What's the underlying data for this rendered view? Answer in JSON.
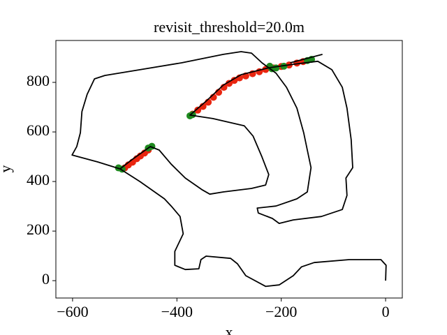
{
  "chart_data": {
    "type": "line",
    "title": "revisit_threshold=20.0m",
    "xlabel": "x",
    "ylabel": "y",
    "xlim": [
      -632,
      32
    ],
    "ylim": [
      -70,
      969
    ],
    "xticks": [
      {
        "value": -600,
        "label": "−600"
      },
      {
        "value": -400,
        "label": "−400"
      },
      {
        "value": -200,
        "label": "−200"
      },
      0
    ],
    "yticks": [
      0,
      200,
      400,
      600,
      800
    ],
    "series": [
      {
        "kind": "scatter",
        "color": "#e8250f",
        "x": [
          -500,
          -493,
          -485,
          -477,
          -470,
          -462,
          -455,
          -370,
          -360,
          -350,
          -340,
          -330,
          -320,
          -310,
          -300,
          -290,
          -280,
          -268,
          -255,
          -242,
          -230,
          -215,
          -200,
          -185,
          -170,
          -158
        ],
        "values": [
          455,
          467,
          478,
          492,
          503,
          515,
          527,
          672,
          688,
          703,
          720,
          740,
          760,
          780,
          796,
          808,
          818,
          826,
          835,
          843,
          852,
          858,
          864,
          870,
          878,
          884
        ]
      },
      {
        "kind": "scatter",
        "color": "#1f8a1f",
        "x": [
          -512,
          -505,
          -455,
          -448,
          -375,
          -370,
          -222,
          -218,
          -210,
          -195,
          -150,
          -142
        ],
        "values": [
          455,
          450,
          535,
          542,
          665,
          670,
          865,
          855,
          858,
          865,
          888,
          893
        ]
      },
      {
        "kind": "line",
        "color": "#000000",
        "x": [
          0,
          1,
          -9,
          -70,
          -137,
          -161,
          -177,
          -204,
          -230,
          -268,
          -284,
          -297,
          -344,
          -354,
          -358,
          -384,
          -404,
          -404,
          -388,
          -394,
          -411,
          -424,
          -471,
          -509,
          -552,
          -601,
          -592,
          -585,
          -582,
          -572,
          -558,
          -538,
          -471,
          -391,
          -311,
          -277,
          -257,
          -237,
          -210,
          -190,
          -170,
          -157,
          -150,
          -143,
          -150,
          -170,
          -210,
          -246,
          -244,
          -217,
          -204,
          -177,
          -123,
          -83,
          -74,
          -76,
          -63,
          -66,
          -74,
          -83,
          -103,
          -130,
          -177,
          -224,
          -277,
          -311,
          -344,
          -375,
          -331,
          -271,
          -254,
          -237,
          -224,
          -230,
          -257,
          -311,
          -337,
          -351,
          -384,
          -411,
          -434,
          -451,
          -485,
          -509,
          null,
          -183,
          -121
        ],
        "values": [
          0,
          62,
          85,
          85,
          73,
          56,
          20,
          -17,
          -23,
          20,
          68,
          90,
          99,
          85,
          48,
          45,
          62,
          118,
          189,
          259,
          301,
          330,
          400,
          451,
          479,
          507,
          541,
          597,
          682,
          752,
          814,
          828,
          851,
          879,
          913,
          924,
          918,
          879,
          837,
          780,
          696,
          597,
          527,
          456,
          358,
          330,
          301,
          293,
          273,
          251,
          231,
          245,
          259,
          287,
          344,
          414,
          456,
          569,
          696,
          780,
          851,
          885,
          873,
          859,
          831,
          789,
          724,
          668,
          654,
          625,
          583,
          499,
          428,
          386,
          372,
          358,
          349,
          366,
          414,
          470,
          527,
          541,
          490,
          451,
          null,
          879,
          913
        ]
      }
    ]
  }
}
